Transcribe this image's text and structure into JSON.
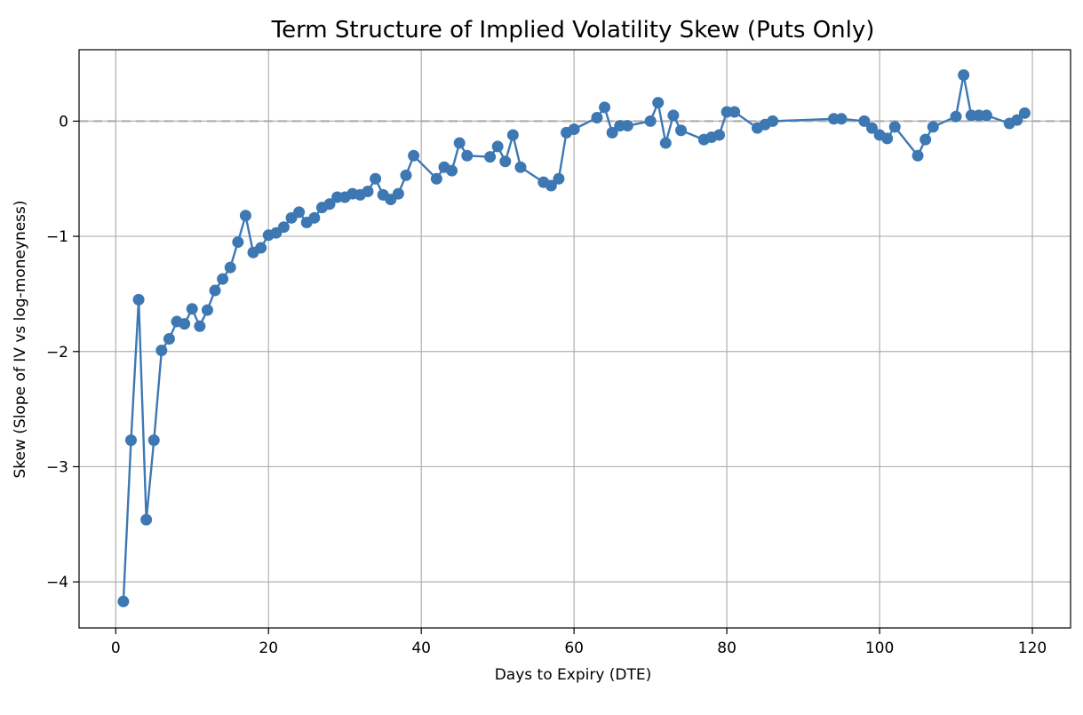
{
  "chart_data": {
    "type": "line",
    "title": "Term Structure of Implied Volatility Skew (Puts Only)",
    "xlabel": "Days to Expiry (DTE)",
    "ylabel": "Skew (Slope of IV vs log-moneyness)",
    "xlim": [
      -4.8,
      125
    ],
    "ylim": [
      -4.4,
      0.62
    ],
    "xticks": [
      0,
      20,
      40,
      60,
      80,
      100,
      120
    ],
    "yticks": [
      -4,
      -3,
      -2,
      -1,
      0
    ],
    "xtick_labels": [
      "0",
      "20",
      "40",
      "60",
      "80",
      "100",
      "120"
    ],
    "ytick_labels": [
      "−4",
      "−3",
      "−2",
      "−1",
      "0"
    ],
    "grid": true,
    "reference_line": {
      "y": 0,
      "style": "dashed",
      "color": "#b0b0b0"
    },
    "series_color": "#3d78b3",
    "series": [
      {
        "x": [
          1,
          2,
          3,
          4,
          5,
          6,
          7,
          8,
          9,
          10,
          11,
          12,
          13,
          14,
          15,
          16,
          17,
          18,
          19,
          20,
          21,
          22,
          23,
          24,
          25,
          26,
          27,
          28,
          29,
          30,
          31,
          32,
          33,
          34,
          35,
          36,
          37,
          38,
          39,
          42,
          43,
          44,
          45,
          46,
          49,
          50,
          51,
          52,
          53,
          56,
          57,
          58,
          59,
          60,
          63,
          64,
          65,
          66,
          67,
          70,
          71,
          72,
          73,
          74,
          77,
          78,
          79,
          80,
          81,
          84,
          85,
          86,
          94,
          95,
          98,
          99,
          100,
          101,
          102,
          105,
          106,
          107,
          110,
          111,
          112,
          113,
          114,
          117,
          118,
          119
        ],
        "y": [
          -4.17,
          -2.77,
          -1.55,
          -3.46,
          -2.77,
          -1.99,
          -1.89,
          -1.74,
          -1.76,
          -1.63,
          -1.78,
          -1.64,
          -1.47,
          -1.37,
          -1.27,
          -1.05,
          -0.82,
          -1.14,
          -1.1,
          -0.99,
          -0.97,
          -0.92,
          -0.84,
          -0.79,
          -0.88,
          -0.84,
          -0.75,
          -0.72,
          -0.66,
          -0.66,
          -0.63,
          -0.64,
          -0.61,
          -0.5,
          -0.64,
          -0.68,
          -0.63,
          -0.47,
          -0.3,
          -0.5,
          -0.4,
          -0.43,
          -0.19,
          -0.3,
          -0.31,
          -0.22,
          -0.35,
          -0.12,
          -0.4,
          -0.53,
          -0.56,
          -0.5,
          -0.1,
          -0.07,
          0.03,
          0.12,
          -0.1,
          -0.04,
          -0.04,
          0.0,
          0.16,
          -0.19,
          0.05,
          -0.08,
          -0.16,
          -0.14,
          -0.12,
          0.08,
          0.08,
          -0.06,
          -0.03,
          0.0,
          0.02,
          0.02,
          0.0,
          -0.06,
          -0.12,
          -0.15,
          -0.05,
          -0.3,
          -0.16,
          -0.05,
          0.04,
          0.4,
          0.05,
          0.05,
          0.05,
          -0.02,
          0.01,
          0.07
        ]
      }
    ]
  }
}
